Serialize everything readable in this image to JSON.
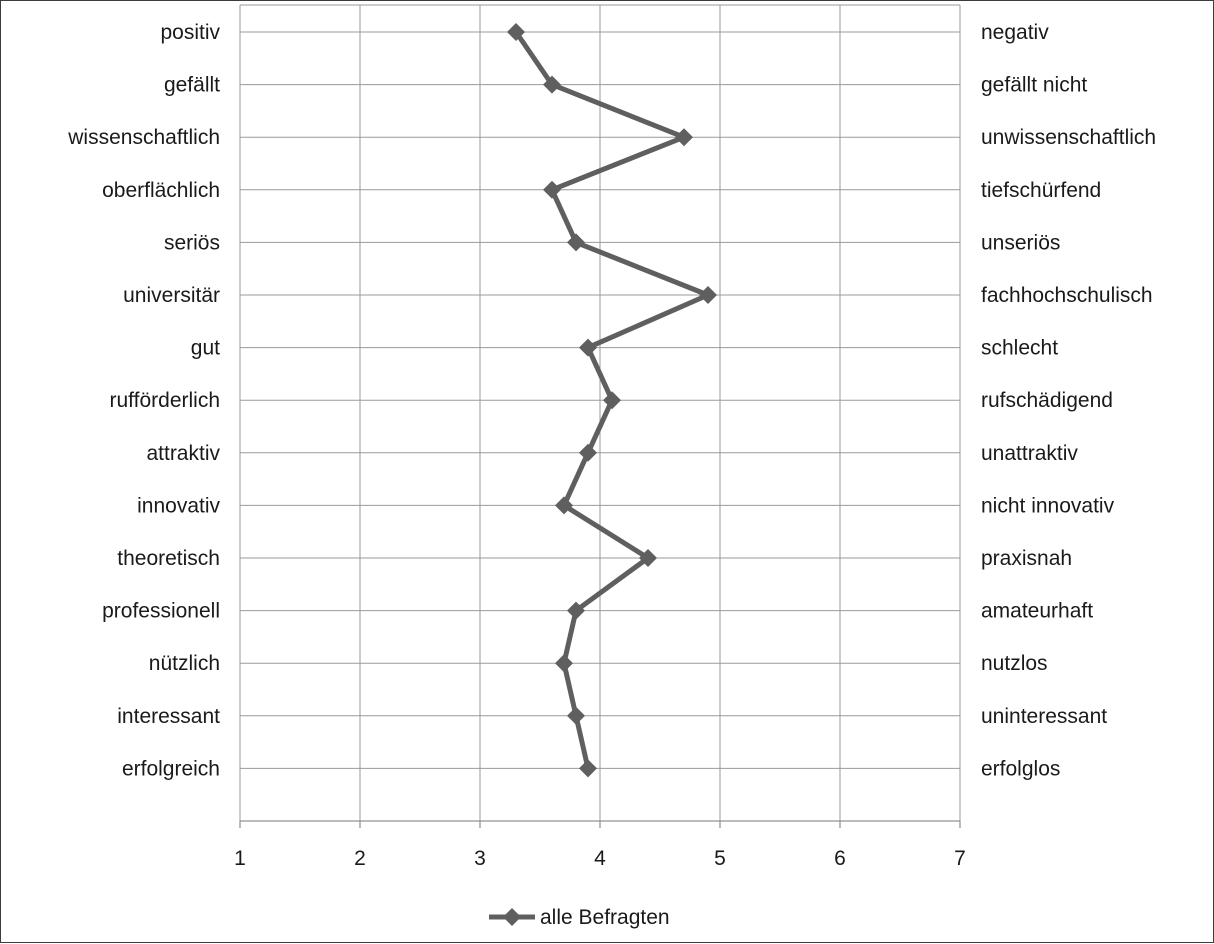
{
  "chart_data": {
    "type": "line",
    "orientation": "horizontal-profile",
    "left_labels": [
      "positiv",
      "gefällt",
      "wissenschaftlich",
      "oberflächlich",
      "seriös",
      "universitär",
      "gut",
      "rufförderlich",
      "attraktiv",
      "innovativ",
      "theoretisch",
      "professionell",
      "nützlich",
      "interessant",
      "erfolgreich"
    ],
    "right_labels": [
      "negativ",
      "gefällt nicht",
      "unwissenschaftlich",
      "tiefschürfend",
      "unseriös",
      "fachhochschulisch",
      "schlecht",
      "rufschädigend",
      "unattraktiv",
      "nicht innovativ",
      "praxisnah",
      "amateurhaft",
      "nutzlos",
      "uninteressant",
      "erfolglos"
    ],
    "x_ticks": [
      "1",
      "2",
      "3",
      "4",
      "5",
      "6",
      "7"
    ],
    "xlim": [
      1,
      7
    ],
    "grid": true,
    "legend_position": "bottom",
    "series": [
      {
        "name": "alle Befragten",
        "color": "#5f5f5f",
        "marker": "diamond",
        "values": [
          3.3,
          3.6,
          4.7,
          3.6,
          3.8,
          4.9,
          3.9,
          4.1,
          3.9,
          3.7,
          4.4,
          3.8,
          3.7,
          3.8,
          3.9
        ]
      }
    ]
  }
}
